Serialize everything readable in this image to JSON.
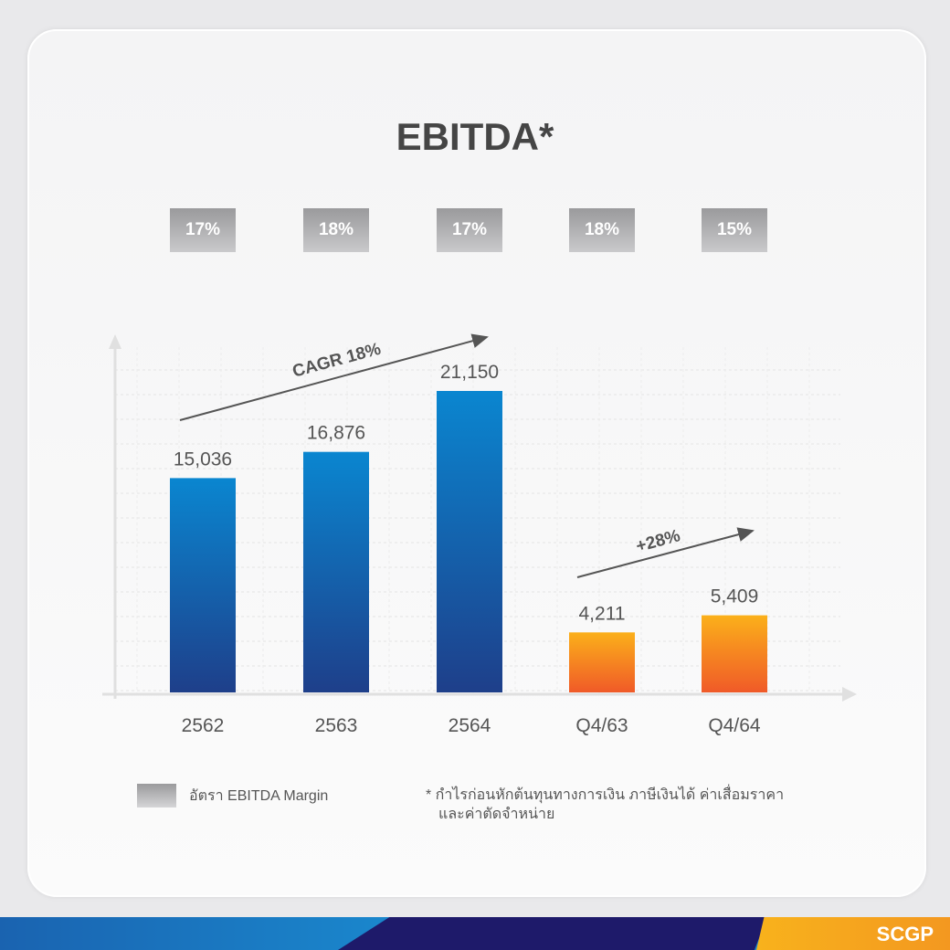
{
  "title": "EBITDA*",
  "margins": [
    "17%",
    "18%",
    "17%",
    "18%",
    "15%"
  ],
  "chart_data": {
    "type": "bar",
    "title": "EBITDA*",
    "categories": [
      "2562",
      "2563",
      "2564",
      "Q4/63",
      "Q4/64"
    ],
    "values": [
      15036,
      16876,
      21150,
      4211,
      5409
    ],
    "labels": [
      "15,036",
      "16,876",
      "21,150",
      "4,211",
      "5,409"
    ],
    "ebitda_margin_pct": [
      17,
      18,
      17,
      18,
      15
    ],
    "series_colors": [
      "#0a7fc8",
      "#0a7fc8",
      "#0a7fc8",
      "#f7a21e",
      "#f7a21e"
    ],
    "annotations": [
      "CAGR 18%",
      "+28%"
    ],
    "ylim": [
      0,
      22000
    ],
    "grid": true
  },
  "legend": {
    "label": "อัตรา EBITDA Margin"
  },
  "note": {
    "line1": "* กำไรก่อนหักต้นทุนทางการเงิน ภาษีเงินได้ ค่าเสื่อมราคา",
    "line2": "และค่าตัดจำหน่าย"
  },
  "brand": "SCGP"
}
